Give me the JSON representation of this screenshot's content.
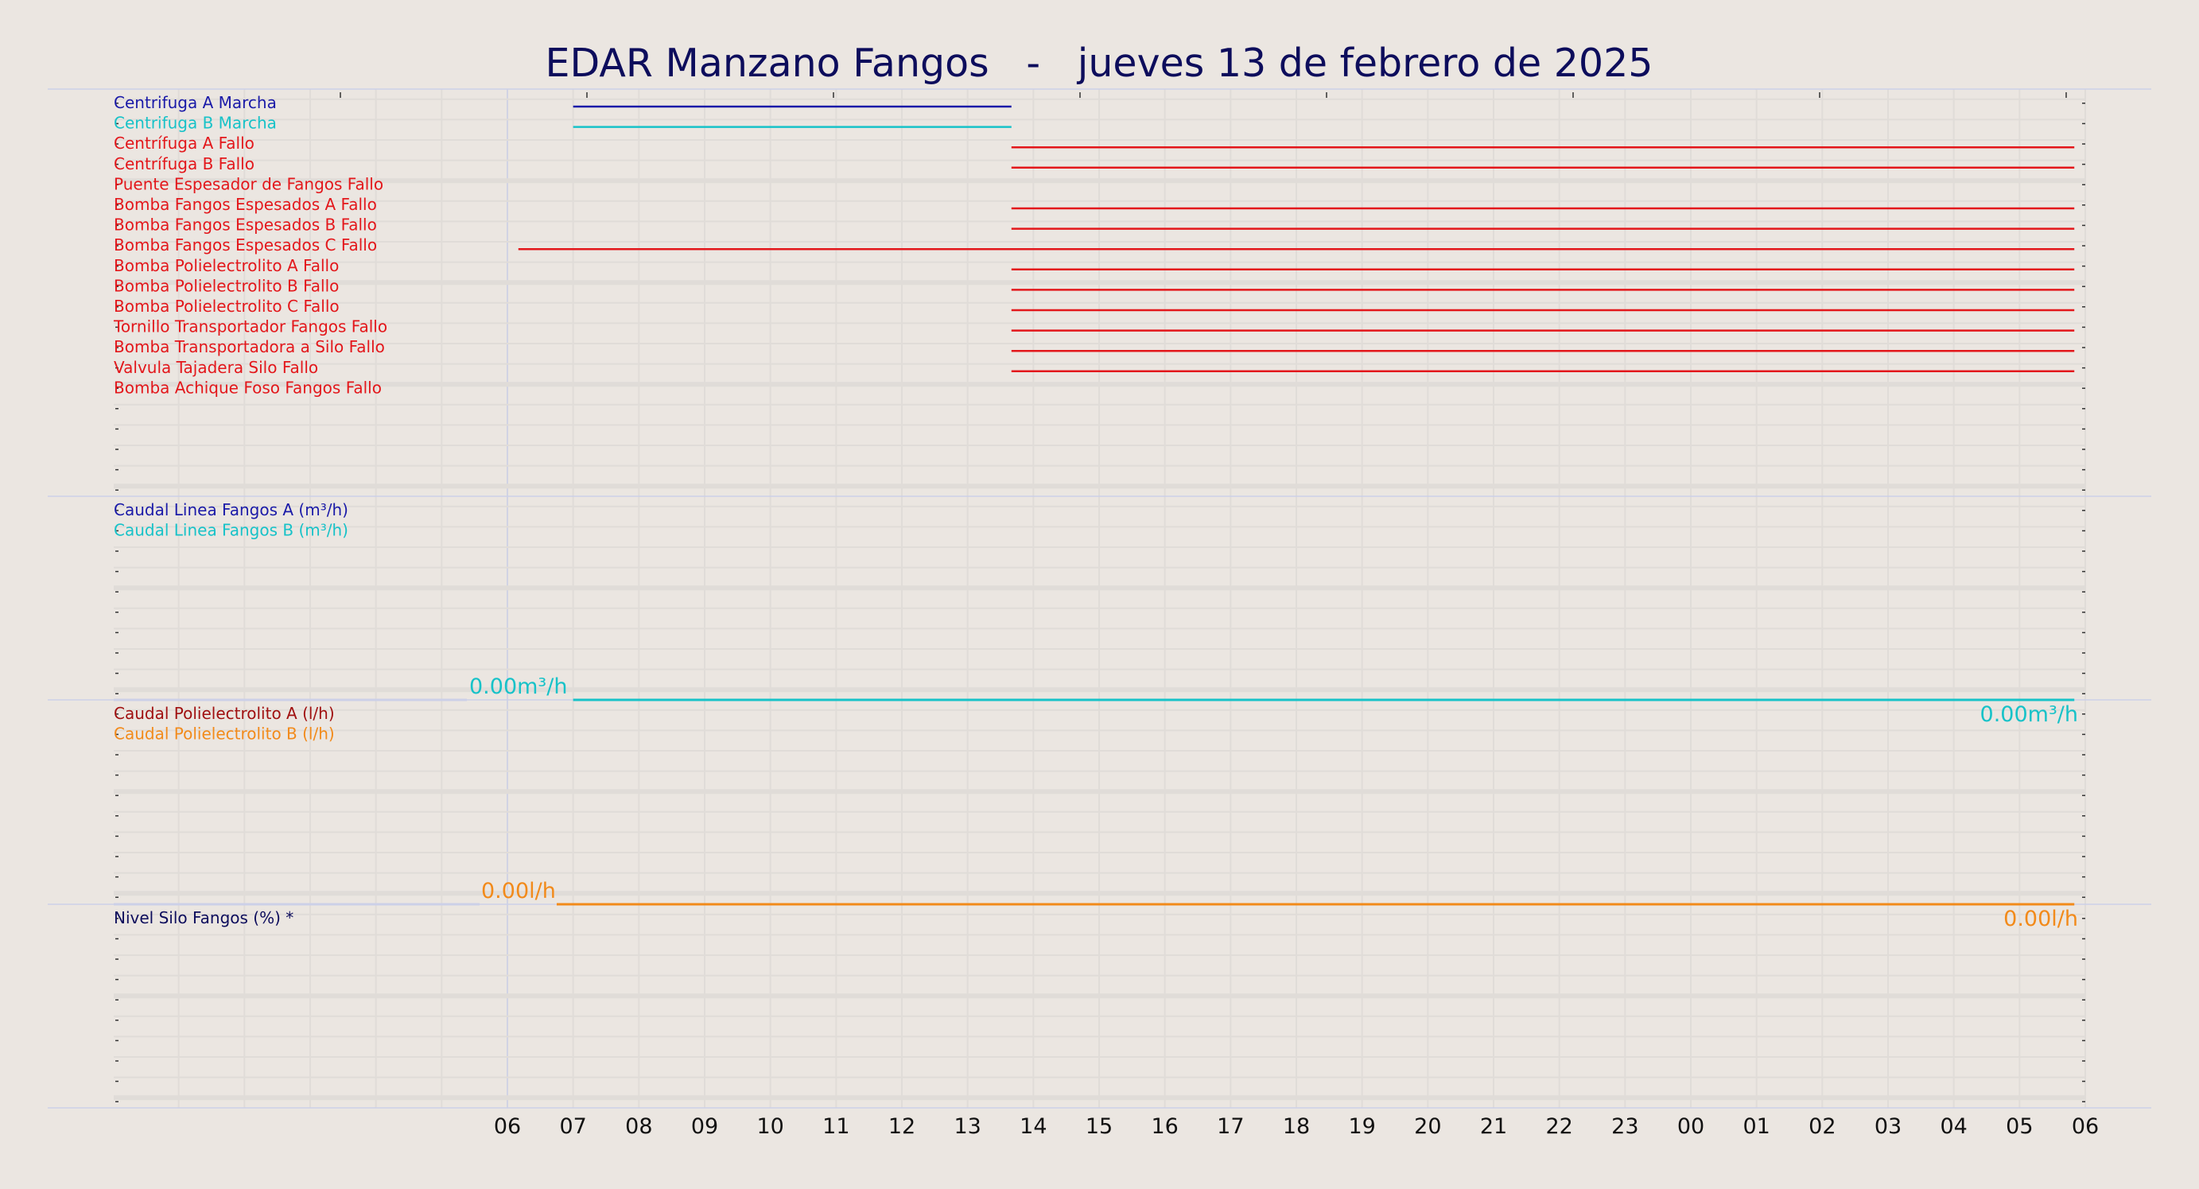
{
  "chart_data": {
    "type": "line",
    "title": "EDAR Manzano Fangos   -   jueves 13 de febrero de 2025",
    "x_tick_labels": [
      "06",
      "07",
      "08",
      "09",
      "10",
      "11",
      "12",
      "13",
      "14",
      "15",
      "16",
      "17",
      "18",
      "19",
      "20",
      "21",
      "22",
      "23",
      "00",
      "01",
      "02",
      "03",
      "04",
      "05",
      "06"
    ],
    "x_range": [
      "2025-02-13 06:00",
      "2025-02-14 06:00"
    ],
    "colors": {
      "background": "#ebe6e1",
      "title": "#0d0d5c",
      "navy": "#0d0d5c",
      "blue": "#1a1aa8",
      "cyan": "#17c2c8",
      "red": "#e3171b",
      "dark_red": "#a01010",
      "orange": "#f28a1a",
      "grid": "#e0dcd8",
      "separator": "#ccd0e8"
    },
    "panels": [
      {
        "id": "digital",
        "series": [
          {
            "name": "Centrifuga A Marcha",
            "color": "#1a1aa8",
            "segments": [
              [
                "07:00",
                "13:40"
              ]
            ]
          },
          {
            "name": "Centrifuga B Marcha",
            "color": "#17c2c8",
            "segments": [
              [
                "07:00",
                "13:40"
              ]
            ]
          },
          {
            "name": "Centrífuga A Fallo",
            "color": "#e3171b",
            "segments": [
              [
                "13:40",
                "05:50"
              ]
            ]
          },
          {
            "name": "Centrífuga B Fallo",
            "color": "#e3171b",
            "segments": [
              [
                "13:40",
                "05:50"
              ]
            ]
          },
          {
            "name": "Puente Espesador de Fangos Fallo",
            "color": "#e3171b",
            "segments": []
          },
          {
            "name": "Bomba Fangos Espesados A Fallo",
            "color": "#e3171b",
            "segments": [
              [
                "13:40",
                "05:50"
              ]
            ]
          },
          {
            "name": "Bomba Fangos Espesados B Fallo",
            "color": "#e3171b",
            "segments": [
              [
                "13:40",
                "05:50"
              ]
            ]
          },
          {
            "name": "Bomba Fangos Espesados C Fallo",
            "color": "#e3171b",
            "segments": [
              [
                "06:10",
                "05:50"
              ]
            ]
          },
          {
            "name": "Bomba Polielectrolito A Fallo",
            "color": "#e3171b",
            "segments": [
              [
                "13:40",
                "05:50"
              ]
            ]
          },
          {
            "name": "Bomba Polielectrolito B Fallo",
            "color": "#e3171b",
            "segments": [
              [
                "13:40",
                "05:50"
              ]
            ]
          },
          {
            "name": "Bomba Polielectrolito C Fallo",
            "color": "#e3171b",
            "segments": [
              [
                "13:40",
                "05:50"
              ]
            ]
          },
          {
            "name": "Tornillo Transportador Fangos Fallo",
            "color": "#e3171b",
            "segments": [
              [
                "13:40",
                "05:50"
              ]
            ]
          },
          {
            "name": "Bomba Transportadora a Silo Fallo",
            "color": "#e3171b",
            "segments": [
              [
                "13:40",
                "05:50"
              ]
            ]
          },
          {
            "name": "Valvula Tajadera Silo Fallo",
            "color": "#e3171b",
            "segments": [
              [
                "13:40",
                "05:50"
              ]
            ]
          },
          {
            "name": "Bomba Achique Foso Fangos Fallo",
            "color": "#e3171b",
            "segments": []
          }
        ]
      },
      {
        "id": "caudal-fangos",
        "series": [
          {
            "name": "Caudal Linea Fangos A (m³/h)",
            "color": "#1a1aa8"
          },
          {
            "name": "Caudal Linea Fangos B (m³/h)",
            "color": "#17c2c8"
          }
        ],
        "line_segments": [
          [
            "06:00",
            "05:40",
            "#ccd0e8"
          ],
          [
            "07:00",
            "05:50",
            "#17c2c8"
          ]
        ],
        "value_labels": [
          "0.00m³/h",
          "0.00m³/h"
        ]
      },
      {
        "id": "caudal-poli",
        "series": [
          {
            "name": "Caudal Polielectrolito A (l/h)",
            "color": "#a01010"
          },
          {
            "name": "Caudal Polielectrolito B (l/h)",
            "color": "#f28a1a"
          }
        ],
        "line_segments": [
          [
            "06:00",
            "05:40",
            "#ccd0e8"
          ],
          [
            "06:45",
            "05:50",
            "#f28a1a"
          ]
        ],
        "value_labels": [
          "0.00l/h",
          "0.00l/h"
        ]
      },
      {
        "id": "nivel-silo",
        "series": [
          {
            "name": "Nivel Silo Fangos (%) *",
            "color": "#0d0d5c"
          }
        ]
      }
    ]
  }
}
